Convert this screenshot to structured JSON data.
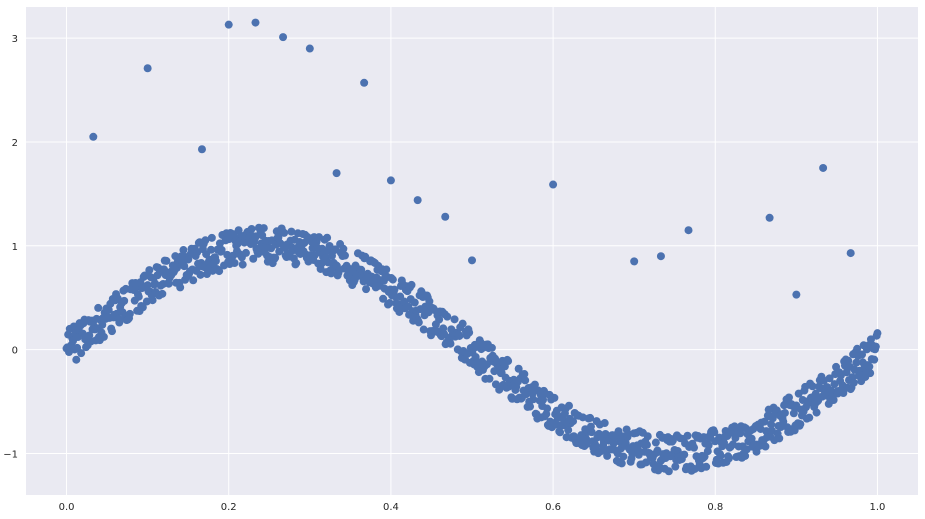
{
  "chart_data": {
    "type": "scatter",
    "title": "",
    "xlabel": "",
    "ylabel": "",
    "xlim": [
      -0.05,
      1.05
    ],
    "ylim": [
      -1.4,
      3.3
    ],
    "grid": true,
    "colors": {
      "background": "#eaeaf2",
      "grid": "#ffffff",
      "point": "#4c72b0"
    },
    "x_ticks": [
      {
        "value": 0.0,
        "label": "0.0"
      },
      {
        "value": 0.2,
        "label": "0.2"
      },
      {
        "value": 0.4,
        "label": "0.4"
      },
      {
        "value": 0.6,
        "label": "0.6"
      },
      {
        "value": 0.8,
        "label": "0.8"
      },
      {
        "value": 1.0,
        "label": "1.0"
      }
    ],
    "y_ticks": [
      {
        "value": -1,
        "label": "−1"
      },
      {
        "value": 0,
        "label": "0"
      },
      {
        "value": 1,
        "label": "1"
      },
      {
        "value": 2,
        "label": "2"
      },
      {
        "value": 3,
        "label": "3"
      }
    ],
    "main_series": {
      "trend": "sin(2*pi*x)",
      "x_start": 0.0,
      "x_end": 1.0,
      "count": 1000,
      "noise_range": [
        -0.18,
        0.18
      ]
    },
    "outliers": [
      {
        "x": 0.033,
        "y": 2.05
      },
      {
        "x": 0.1,
        "y": 2.71
      },
      {
        "x": 0.167,
        "y": 1.93
      },
      {
        "x": 0.2,
        "y": 3.13
      },
      {
        "x": 0.233,
        "y": 3.15
      },
      {
        "x": 0.267,
        "y": 3.01
      },
      {
        "x": 0.3,
        "y": 2.9
      },
      {
        "x": 0.333,
        "y": 1.7
      },
      {
        "x": 0.367,
        "y": 2.57
      },
      {
        "x": 0.4,
        "y": 1.63
      },
      {
        "x": 0.433,
        "y": 1.44
      },
      {
        "x": 0.467,
        "y": 1.28
      },
      {
        "x": 0.5,
        "y": 0.86
      },
      {
        "x": 0.6,
        "y": 1.59
      },
      {
        "x": 0.7,
        "y": 0.85
      },
      {
        "x": 0.733,
        "y": 0.9
      },
      {
        "x": 0.767,
        "y": 1.15
      },
      {
        "x": 0.867,
        "y": 1.27
      },
      {
        "x": 0.9,
        "y": 0.53
      },
      {
        "x": 0.933,
        "y": 1.75
      },
      {
        "x": 0.967,
        "y": 0.93
      }
    ]
  }
}
